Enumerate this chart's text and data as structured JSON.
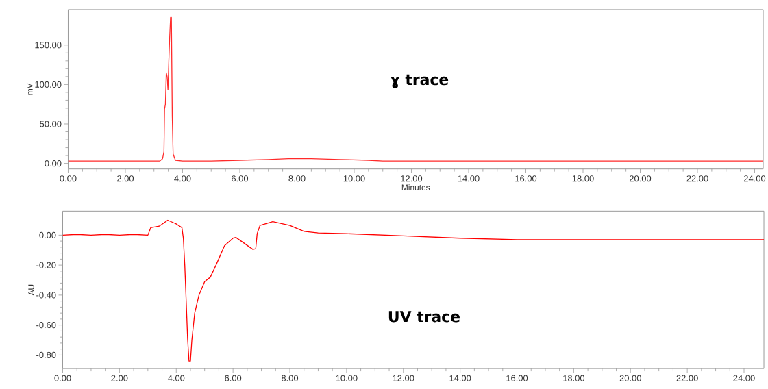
{
  "chart_data": [
    {
      "type": "line",
      "xlabel": "Minutes",
      "ylabel": "mV",
      "annotations": [
        "ɣ trace"
      ],
      "xlim": [
        0,
        24.3
      ],
      "ylim": [
        -7,
        195
      ],
      "xticks": [
        {
          "value": 0,
          "label": "0.00"
        },
        {
          "value": 2,
          "label": "2.00"
        },
        {
          "value": 4,
          "label": "4.00"
        },
        {
          "value": 6,
          "label": "6.00"
        },
        {
          "value": 8,
          "label": "8.00"
        },
        {
          "value": 10,
          "label": "10.00"
        },
        {
          "value": 12,
          "label": "12.00"
        },
        {
          "value": 14,
          "label": "14.00"
        },
        {
          "value": 16,
          "label": "16.00"
        },
        {
          "value": 18,
          "label": "18.00"
        },
        {
          "value": 20,
          "label": "20.00"
        },
        {
          "value": 22,
          "label": "22.00"
        },
        {
          "value": 24,
          "label": "24.00"
        }
      ],
      "yticks": [
        {
          "value": 0,
          "label": "0.00"
        },
        {
          "value": 50,
          "label": "50.00"
        },
        {
          "value": 100,
          "label": "100.00"
        },
        {
          "value": 150,
          "label": "150.00"
        }
      ],
      "series": [
        {
          "color": "#ff2a2a",
          "x": [
            0,
            1,
            2,
            3,
            3.2,
            3.3,
            3.35,
            3.37,
            3.4,
            3.43,
            3.46,
            3.49,
            3.52,
            3.55,
            3.58,
            3.61,
            3.64,
            3.67,
            3.75,
            4,
            5,
            6,
            7,
            7.7,
            8.5,
            9.5,
            10.5,
            11,
            14,
            18,
            24.3
          ],
          "values": [
            3,
            3,
            3,
            3,
            3,
            6,
            15,
            69,
            75,
            115,
            110,
            93,
            130,
            160,
            185,
            185,
            60,
            12,
            4,
            3,
            3,
            4,
            5,
            6,
            6,
            5,
            4,
            3,
            3,
            3,
            3
          ]
        }
      ]
    },
    {
      "type": "line",
      "ylabel": "AU",
      "annotations": [
        "UV trace"
      ],
      "xlim": [
        0,
        24.7
      ],
      "ylim": [
        -0.89,
        0.16
      ],
      "xticks": [
        {
          "value": 0,
          "label": "0.00"
        },
        {
          "value": 2,
          "label": "2.00"
        },
        {
          "value": 4,
          "label": "4.00"
        },
        {
          "value": 6,
          "label": "6.00"
        },
        {
          "value": 8,
          "label": "8.00"
        },
        {
          "value": 10,
          "label": "10.00"
        },
        {
          "value": 12,
          "label": "12.00"
        },
        {
          "value": 14,
          "label": "14.00"
        },
        {
          "value": 16,
          "label": "16.00"
        },
        {
          "value": 18,
          "label": "18.00"
        },
        {
          "value": 20,
          "label": "20.00"
        },
        {
          "value": 22,
          "label": "22.00"
        },
        {
          "value": 24,
          "label": "24.00"
        }
      ],
      "yticks": [
        {
          "value": 0,
          "label": "0.00"
        },
        {
          "value": -0.2,
          "label": "-0.20"
        },
        {
          "value": -0.4,
          "label": "-0.40"
        },
        {
          "value": -0.6,
          "label": "-0.60"
        },
        {
          "value": -0.8,
          "label": "-0.80"
        }
      ],
      "series": [
        {
          "color": "#ff0000",
          "x": [
            0,
            0.5,
            1,
            1.5,
            2,
            2.5,
            3,
            3.1,
            3.4,
            3.7,
            4,
            4.2,
            4.25,
            4.3,
            4.35,
            4.4,
            4.45,
            4.5,
            4.55,
            4.65,
            4.8,
            5,
            5.2,
            5.4,
            5.7,
            6,
            6.1,
            6.4,
            6.7,
            6.8,
            6.85,
            6.95,
            7.4,
            8,
            8.5,
            9,
            10,
            12,
            14,
            16,
            18,
            20,
            22,
            24.7
          ],
          "values": [
            0,
            0.005,
            0,
            0.005,
            0,
            0.005,
            0,
            0.05,
            0.06,
            0.1,
            0.075,
            0.05,
            -0.02,
            -0.2,
            -0.44,
            -0.69,
            -0.84,
            -0.84,
            -0.7,
            -0.52,
            -0.4,
            -0.31,
            -0.28,
            -0.2,
            -0.07,
            -0.02,
            -0.015,
            -0.055,
            -0.095,
            -0.09,
            0.01,
            0.065,
            0.09,
            0.065,
            0.025,
            0.015,
            0.01,
            -0.005,
            -0.02,
            -0.03,
            -0.03,
            -0.03,
            -0.03,
            -0.03
          ]
        }
      ]
    }
  ]
}
